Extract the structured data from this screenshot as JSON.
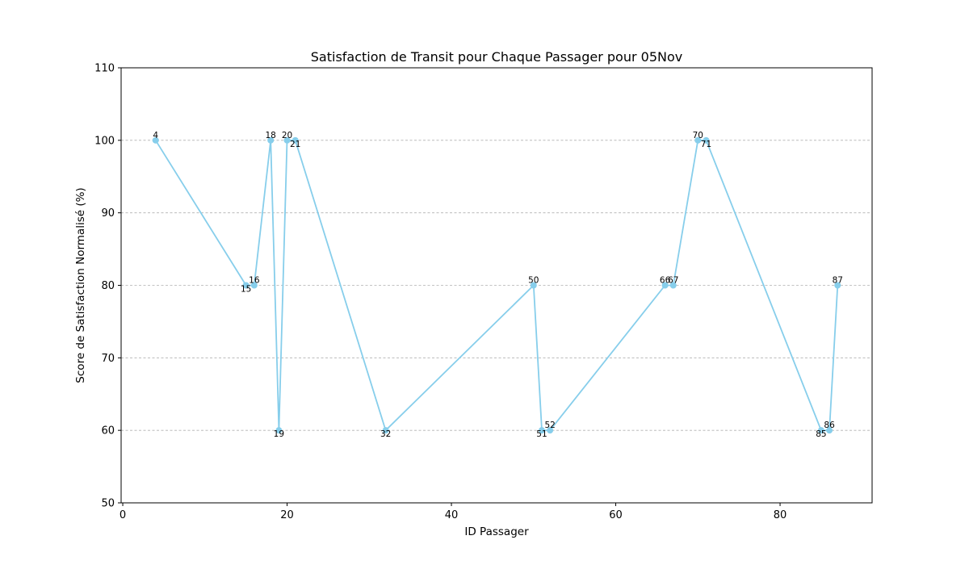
{
  "chart_data": {
    "type": "line",
    "title": "Satisfaction de Transit pour Chaque Passager pour 05Nov",
    "xlabel": "ID Passager",
    "ylabel": "Score de Satisfaction Normalisé (%)",
    "xlim": [
      -0.2,
      91.2
    ],
    "ylim": [
      50,
      110
    ],
    "xticks": [
      0,
      20,
      40,
      60,
      80
    ],
    "yticks": [
      50,
      60,
      70,
      80,
      90,
      100,
      110
    ],
    "grid": "y-dashed",
    "color": "#87CEEB",
    "series": [
      {
        "x": [
          4,
          15,
          16,
          18,
          19,
          20,
          21,
          32,
          50,
          51,
          52,
          66,
          67,
          70,
          71,
          85,
          86,
          87
        ],
        "values": [
          100,
          80,
          80,
          100,
          60,
          100,
          100,
          60,
          80,
          60,
          60,
          80,
          80,
          100,
          100,
          60,
          60,
          80
        ]
      }
    ],
    "point_labels": [
      "4",
      "15",
      "16",
      "18",
      "19",
      "20",
      "21",
      "32",
      "50",
      "51",
      "52",
      "66",
      "67",
      "70",
      "71",
      "85",
      "86",
      "87"
    ]
  }
}
